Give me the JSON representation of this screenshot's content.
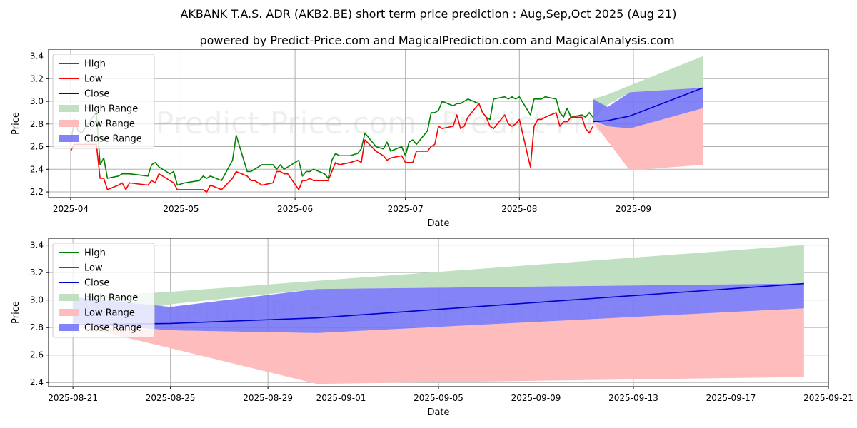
{
  "title": "AKBANK T.A.S. ADR (AKB2.BE) short term price prediction : Aug,Sep,Oct 2025 (Aug 21)",
  "subtitle": "powered by Predict-Price.com and MagicalPrediction.com and MagicalAnalysis.com",
  "watermark": "Predict-Price.com",
  "colors": {
    "high": "#008000",
    "low": "#ff0000",
    "close": "#0000cc",
    "high_range": "#c1e0c1",
    "low_range": "#ffbcbc",
    "close_range": "#6f6ff6"
  },
  "chart_data": [
    {
      "type": "line",
      "panel": "history-and-prediction",
      "xlabel": "Date",
      "ylabel": "Price",
      "xlim": [
        "2025-03-26",
        "2025-10-24"
      ],
      "ylim": [
        2.15,
        3.46
      ],
      "xticks": [
        "2025-04-01",
        "2025-05-01",
        "2025-06-01",
        "2025-07-01",
        "2025-08-01",
        "2025-09-01"
      ],
      "xtick_labels": [
        "2025-04",
        "2025-05",
        "2025-06",
        "2025-07",
        "2025-08",
        "2025-09"
      ],
      "yticks": [
        2.2,
        2.4,
        2.6,
        2.8,
        3.0,
        3.2,
        3.4
      ],
      "ytick_labels": [
        "2.2",
        "2.4",
        "2.6",
        "2.8",
        "3.0",
        "3.2",
        "3.4"
      ],
      "grid": true,
      "legend": {
        "placement": "upper-left",
        "entries": [
          "High",
          "Low",
          "Close",
          "High Range",
          "Low Range",
          "Close Range"
        ]
      },
      "series": [
        {
          "name": "High",
          "kind": "line",
          "x": [
            "2025-04-01",
            "2025-04-02",
            "2025-04-03",
            "2025-04-04",
            "2025-04-07",
            "2025-04-08",
            "2025-04-09",
            "2025-04-10",
            "2025-04-11",
            "2025-04-14",
            "2025-04-15",
            "2025-04-16",
            "2025-04-17",
            "2025-04-22",
            "2025-04-23",
            "2025-04-24",
            "2025-04-25",
            "2025-04-28",
            "2025-04-29",
            "2025-04-30",
            "2025-05-02",
            "2025-05-06",
            "2025-05-07",
            "2025-05-08",
            "2025-05-09",
            "2025-05-12",
            "2025-05-15",
            "2025-05-16",
            "2025-05-19",
            "2025-05-20",
            "2025-05-21",
            "2025-05-22",
            "2025-05-23",
            "2025-05-26",
            "2025-05-27",
            "2025-05-28",
            "2025-05-29",
            "2025-05-30",
            "2025-06-02",
            "2025-06-03",
            "2025-06-04",
            "2025-06-05",
            "2025-06-06",
            "2025-06-09",
            "2025-06-10",
            "2025-06-11",
            "2025-06-12",
            "2025-06-13",
            "2025-06-16",
            "2025-06-17",
            "2025-06-18",
            "2025-06-19",
            "2025-06-20",
            "2025-06-23",
            "2025-06-24",
            "2025-06-25",
            "2025-06-26",
            "2025-06-27",
            "2025-06-30",
            "2025-07-01",
            "2025-07-02",
            "2025-07-03",
            "2025-07-04",
            "2025-07-07",
            "2025-07-08",
            "2025-07-09",
            "2025-07-10",
            "2025-07-11",
            "2025-07-14",
            "2025-07-15",
            "2025-07-16",
            "2025-07-17",
            "2025-07-18",
            "2025-07-21",
            "2025-07-22",
            "2025-07-23",
            "2025-07-24",
            "2025-07-25",
            "2025-07-28",
            "2025-07-29",
            "2025-07-30",
            "2025-07-31",
            "2025-08-01",
            "2025-08-04",
            "2025-08-05",
            "2025-08-06",
            "2025-08-07",
            "2025-08-08",
            "2025-08-11",
            "2025-08-12",
            "2025-08-13",
            "2025-08-14",
            "2025-08-15",
            "2025-08-18",
            "2025-08-19",
            "2025-08-20",
            "2025-08-21"
          ],
          "y": [
            2.62,
            2.84,
            2.74,
            2.72,
            2.86,
            2.9,
            2.44,
            2.5,
            2.32,
            2.34,
            2.36,
            2.36,
            2.36,
            2.34,
            2.44,
            2.46,
            2.42,
            2.36,
            2.38,
            2.26,
            2.28,
            2.3,
            2.34,
            2.32,
            2.34,
            2.3,
            2.48,
            2.7,
            2.38,
            2.38,
            2.4,
            2.42,
            2.44,
            2.44,
            2.4,
            2.44,
            2.4,
            2.42,
            2.48,
            2.34,
            2.38,
            2.38,
            2.4,
            2.36,
            2.32,
            2.48,
            2.54,
            2.52,
            2.52,
            2.53,
            2.54,
            2.58,
            2.72,
            2.6,
            2.59,
            2.58,
            2.64,
            2.56,
            2.6,
            2.52,
            2.64,
            2.66,
            2.62,
            2.74,
            2.9,
            2.9,
            2.92,
            3.0,
            2.96,
            2.98,
            2.98,
            3.0,
            3.02,
            2.98,
            2.9,
            2.86,
            2.84,
            3.02,
            3.04,
            3.02,
            3.04,
            3.02,
            3.04,
            2.88,
            3.02,
            3.02,
            3.02,
            3.04,
            3.02,
            2.9,
            2.86,
            2.94,
            2.86,
            2.88,
            2.86,
            2.9,
            2.86
          ]
        },
        {
          "name": "Low",
          "kind": "line",
          "x": [
            "2025-04-01",
            "2025-04-02",
            "2025-04-03",
            "2025-04-04",
            "2025-04-07",
            "2025-04-08",
            "2025-04-09",
            "2025-04-10",
            "2025-04-11",
            "2025-04-14",
            "2025-04-15",
            "2025-04-16",
            "2025-04-17",
            "2025-04-22",
            "2025-04-23",
            "2025-04-24",
            "2025-04-25",
            "2025-04-28",
            "2025-04-29",
            "2025-04-30",
            "2025-05-02",
            "2025-05-06",
            "2025-05-07",
            "2025-05-08",
            "2025-05-09",
            "2025-05-12",
            "2025-05-15",
            "2025-05-16",
            "2025-05-19",
            "2025-05-20",
            "2025-05-21",
            "2025-05-22",
            "2025-05-23",
            "2025-05-26",
            "2025-05-27",
            "2025-05-28",
            "2025-05-29",
            "2025-05-30",
            "2025-06-02",
            "2025-06-03",
            "2025-06-04",
            "2025-06-05",
            "2025-06-06",
            "2025-06-09",
            "2025-06-10",
            "2025-06-11",
            "2025-06-12",
            "2025-06-13",
            "2025-06-16",
            "2025-06-17",
            "2025-06-18",
            "2025-06-19",
            "2025-06-20",
            "2025-06-23",
            "2025-06-24",
            "2025-06-25",
            "2025-06-26",
            "2025-06-27",
            "2025-06-30",
            "2025-07-01",
            "2025-07-02",
            "2025-07-03",
            "2025-07-04",
            "2025-07-07",
            "2025-07-08",
            "2025-07-09",
            "2025-07-10",
            "2025-07-11",
            "2025-07-14",
            "2025-07-15",
            "2025-07-16",
            "2025-07-17",
            "2025-07-18",
            "2025-07-21",
            "2025-07-22",
            "2025-07-23",
            "2025-07-24",
            "2025-07-25",
            "2025-07-28",
            "2025-07-29",
            "2025-07-30",
            "2025-07-31",
            "2025-08-01",
            "2025-08-04",
            "2025-08-05",
            "2025-08-06",
            "2025-08-07",
            "2025-08-08",
            "2025-08-11",
            "2025-08-12",
            "2025-08-13",
            "2025-08-14",
            "2025-08-15",
            "2025-08-18",
            "2025-08-19",
            "2025-08-20",
            "2025-08-21"
          ],
          "y": [
            2.56,
            2.62,
            2.62,
            2.62,
            2.62,
            2.62,
            2.32,
            2.32,
            2.22,
            2.26,
            2.28,
            2.22,
            2.28,
            2.26,
            2.3,
            2.28,
            2.36,
            2.3,
            2.28,
            2.22,
            2.22,
            2.22,
            2.22,
            2.2,
            2.26,
            2.22,
            2.32,
            2.38,
            2.34,
            2.3,
            2.3,
            2.28,
            2.26,
            2.28,
            2.38,
            2.38,
            2.36,
            2.36,
            2.22,
            2.3,
            2.3,
            2.32,
            2.3,
            2.3,
            2.3,
            2.38,
            2.46,
            2.44,
            2.46,
            2.47,
            2.48,
            2.46,
            2.66,
            2.56,
            2.54,
            2.52,
            2.48,
            2.5,
            2.52,
            2.46,
            2.46,
            2.46,
            2.56,
            2.56,
            2.6,
            2.62,
            2.78,
            2.76,
            2.78,
            2.88,
            2.76,
            2.78,
            2.86,
            2.98,
            2.9,
            2.86,
            2.78,
            2.76,
            2.88,
            2.8,
            2.78,
            2.8,
            2.84,
            2.42,
            2.78,
            2.84,
            2.84,
            2.86,
            2.9,
            2.78,
            2.82,
            2.82,
            2.86,
            2.86,
            2.76,
            2.72,
            2.78
          ]
        },
        {
          "name": "High Range",
          "kind": "band",
          "x": [
            "2025-08-21",
            "2025-08-25",
            "2025-08-31",
            "2025-09-20"
          ],
          "lower": [
            2.83,
            2.97,
            3.08,
            3.12
          ],
          "upper": [
            3.02,
            3.06,
            3.14,
            3.4
          ]
        },
        {
          "name": "Low Range",
          "kind": "band",
          "x": [
            "2025-08-21",
            "2025-08-25",
            "2025-08-31",
            "2025-09-20"
          ],
          "lower": [
            2.82,
            2.65,
            2.39,
            2.44
          ],
          "upper": [
            2.82,
            2.78,
            2.76,
            2.94
          ]
        },
        {
          "name": "Close Range",
          "kind": "band",
          "x": [
            "2025-08-21",
            "2025-08-25",
            "2025-08-31",
            "2025-09-20"
          ],
          "lower": [
            2.83,
            2.78,
            2.76,
            2.94
          ],
          "upper": [
            3.02,
            2.95,
            3.08,
            3.12
          ]
        },
        {
          "name": "Close",
          "kind": "line",
          "x": [
            "2025-08-21",
            "2025-08-25",
            "2025-08-31",
            "2025-09-20"
          ],
          "y": [
            2.82,
            2.83,
            2.87,
            3.12
          ]
        }
      ]
    },
    {
      "type": "line",
      "panel": "prediction-detail",
      "xlabel": "Date",
      "ylabel": "Price",
      "xlim": [
        "2025-08-20",
        "2025-09-21"
      ],
      "ylim": [
        2.37,
        3.45
      ],
      "xticks": [
        "2025-08-21",
        "2025-08-25",
        "2025-08-29",
        "2025-09-01",
        "2025-09-05",
        "2025-09-09",
        "2025-09-13",
        "2025-09-17",
        "2025-09-21"
      ],
      "xtick_labels": [
        "2025-08-21",
        "2025-08-25",
        "2025-08-29",
        "2025-09-01",
        "2025-09-05",
        "2025-09-09",
        "2025-09-13",
        "2025-09-17",
        "2025-09-21"
      ],
      "yticks": [
        2.4,
        2.6,
        2.8,
        3.0,
        3.2,
        3.4
      ],
      "ytick_labels": [
        "2.4",
        "2.6",
        "2.8",
        "3.0",
        "3.2",
        "3.4"
      ],
      "grid": true,
      "legend": {
        "placement": "upper-left",
        "entries": [
          "High",
          "Low",
          "Close",
          "High Range",
          "Low Range",
          "Close Range"
        ]
      },
      "series": [
        {
          "name": "High Range",
          "kind": "band",
          "x": [
            "2025-08-21",
            "2025-08-25",
            "2025-08-31",
            "2025-09-20"
          ],
          "lower": [
            2.83,
            2.97,
            3.08,
            3.12
          ],
          "upper": [
            3.02,
            3.06,
            3.14,
            3.4
          ]
        },
        {
          "name": "Low Range",
          "kind": "band",
          "x": [
            "2025-08-21",
            "2025-08-25",
            "2025-08-31",
            "2025-09-20"
          ],
          "lower": [
            2.82,
            2.65,
            2.39,
            2.44
          ],
          "upper": [
            2.82,
            2.78,
            2.76,
            2.94
          ]
        },
        {
          "name": "Close Range",
          "kind": "band",
          "x": [
            "2025-08-21",
            "2025-08-25",
            "2025-08-31",
            "2025-09-20"
          ],
          "lower": [
            2.83,
            2.78,
            2.76,
            2.94
          ],
          "upper": [
            3.02,
            2.95,
            3.08,
            3.12
          ]
        },
        {
          "name": "Close",
          "kind": "line",
          "x": [
            "2025-08-21",
            "2025-08-25",
            "2025-08-31",
            "2025-09-20"
          ],
          "y": [
            2.82,
            2.83,
            2.87,
            3.12
          ]
        }
      ]
    }
  ]
}
